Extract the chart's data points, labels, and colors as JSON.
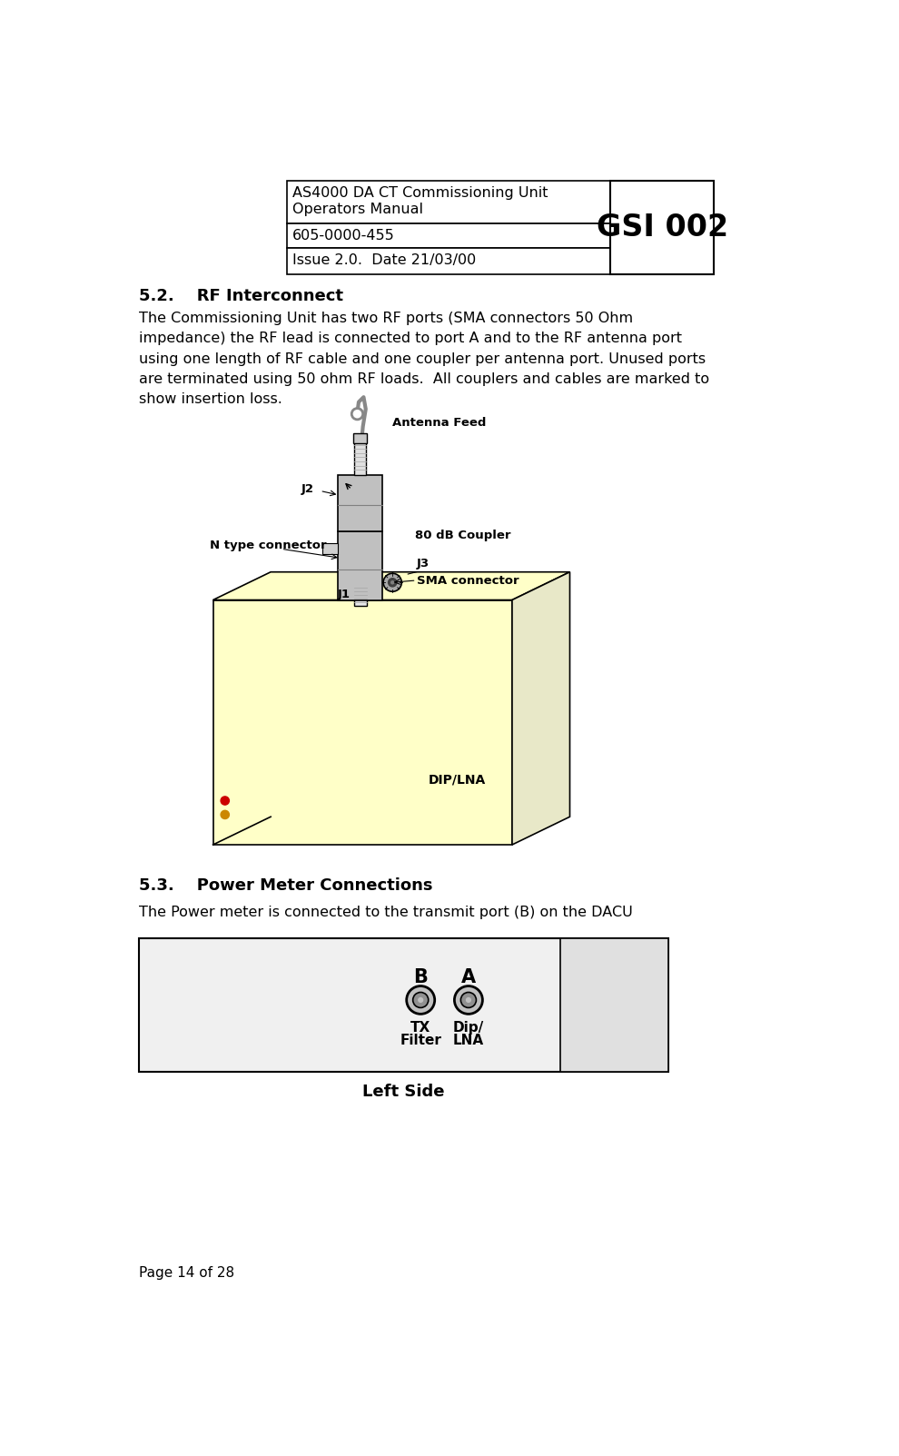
{
  "header_title1": "AS4000 DA CT Commissioning Unit",
  "header_title2": "Operators Manual",
  "header_gsi": "GSI 002",
  "header_line2": "605-0000-455",
  "header_line3": "Issue 2.0.  Date 21/03/00",
  "section_52_title": "5.2.    RF Interconnect",
  "section_52_body": "The Commissioning Unit has two RF ports (SMA connectors 50 Ohm\nimpedance) the RF lead is connected to port A and to the RF antenna port\nusing one length of RF cable and one coupler per antenna port. Unused ports\nare terminated using 50 ohm RF loads.  All couplers and cables are marked to\nshow insertion loss.",
  "section_53_title": "5.3.    Power Meter Connections",
  "section_53_body": "The Power meter is connected to the transmit port (B) on the DACU",
  "footer_text": "Page 14 of 28",
  "bg_color": "#ffffff",
  "box_fc_yellow": "#fffff0",
  "box_fc_yellow2": "#ffffc8",
  "box_fc_right": "#e8e8c8",
  "coupler_gray": "#c0c0c0",
  "coupler_dark": "#909090",
  "pm_bg": "#f0f0f0",
  "pm_left_bg": "#f0f0f0",
  "pm_right_bg": "#e0e0e0",
  "led_red": "#cc0000",
  "led_orange": "#cc8800",
  "diagram1": {
    "antenna_feed": "Antenna Feed",
    "j1": "J1",
    "j2": "J2",
    "j3": "J3",
    "n_type": "N type connector",
    "coupler_80db": "80 dB Coupler",
    "sma_connector": "SMA connector",
    "dip_lna": "DIP/LNA"
  },
  "diagram2": {
    "b_label": "B",
    "a_label": "A",
    "tx": "TX",
    "filter": "Filter",
    "dip": "Dip/",
    "lna": "LNA",
    "left_side": "Left Side"
  }
}
